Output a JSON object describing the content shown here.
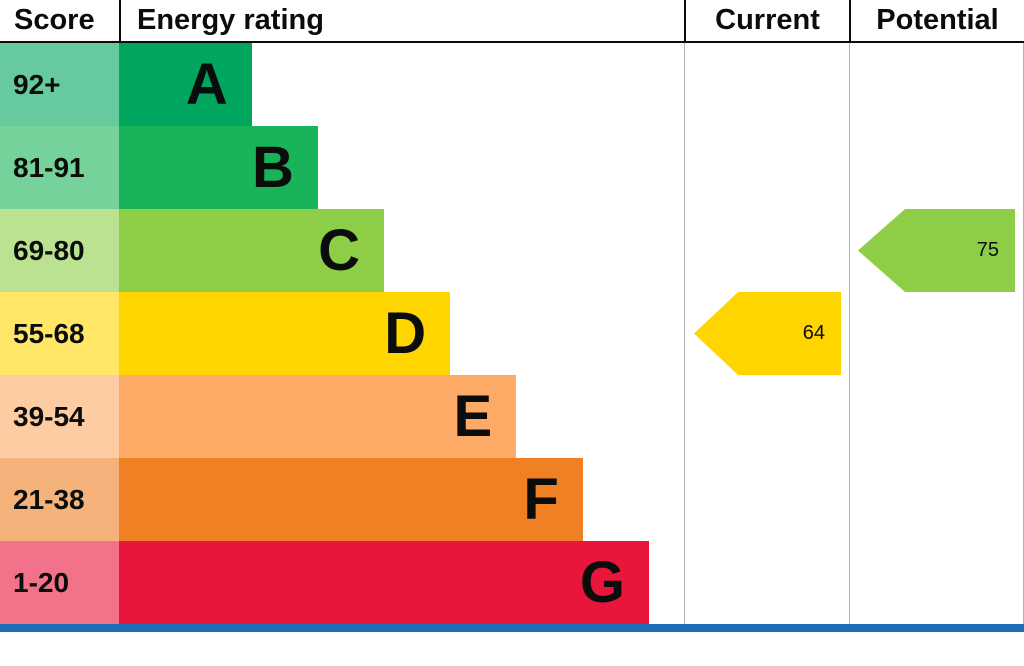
{
  "header": {
    "score": "Score",
    "rating": "Energy rating",
    "current": "Current",
    "potential": "Potential"
  },
  "colors": {
    "bottom_bar": "#1d70b8",
    "grid_line": "#b1b4b6",
    "text": "#0b0c0c"
  },
  "chart_data": {
    "type": "bar",
    "orientation": "horizontal",
    "title": "EPC energy efficiency rating chart",
    "categories": [
      "A",
      "B",
      "C",
      "D",
      "E",
      "F",
      "G"
    ],
    "bands": [
      {
        "letter": "A",
        "score_range": "92+",
        "color": "#00a65e",
        "bar_width_pct": 23.5
      },
      {
        "letter": "B",
        "score_range": "81-91",
        "color": "#19b459",
        "bar_width_pct": 35.2
      },
      {
        "letter": "C",
        "score_range": "69-80",
        "color": "#8dce46",
        "bar_width_pct": 46.9
      },
      {
        "letter": "D",
        "score_range": "55-68",
        "color": "#ffd500",
        "bar_width_pct": 58.6
      },
      {
        "letter": "E",
        "score_range": "39-54",
        "color": "#fcaa65",
        "bar_width_pct": 70.3
      },
      {
        "letter": "F",
        "score_range": "21-38",
        "color": "#ef8023",
        "bar_width_pct": 82.1
      },
      {
        "letter": "G",
        "score_range": "1-20",
        "color": "#e9153b",
        "bar_width_pct": 93.8
      }
    ],
    "current": {
      "value": 64,
      "band": "D",
      "band_index": 3,
      "color": "#ffd500"
    },
    "potential": {
      "value": 75,
      "band": "C",
      "band_index": 2,
      "color": "#8dce46"
    }
  }
}
